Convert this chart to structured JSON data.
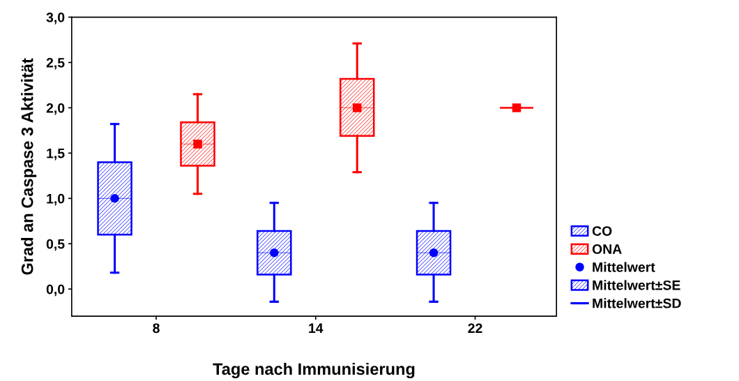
{
  "chart_data": {
    "type": "box",
    "xlabel": "Tage nach Immunisierung",
    "ylabel": "Grad an Caspase 3 Aktivität",
    "categories": [
      "8",
      "14",
      "22"
    ],
    "series": [
      {
        "name": "CO",
        "color": "#0000ff",
        "marker": "circle",
        "boxes": [
          {
            "low": 0.18,
            "q1": 0.6,
            "median": 1.0,
            "q3": 1.4,
            "high": 1.82,
            "mean": 1.0
          },
          {
            "low": -0.14,
            "q1": 0.16,
            "median": 0.4,
            "q3": 0.64,
            "high": 0.95,
            "mean": 0.4
          },
          {
            "low": -0.14,
            "q1": 0.16,
            "median": 0.4,
            "q3": 0.64,
            "high": 0.95,
            "mean": 0.4
          }
        ]
      },
      {
        "name": "ONA",
        "color": "#ff0000",
        "marker": "square",
        "boxes": [
          {
            "low": 1.05,
            "q1": 1.36,
            "median": 1.6,
            "q3": 1.84,
            "high": 2.15,
            "mean": 1.6
          },
          {
            "low": 1.29,
            "q1": 1.69,
            "median": 2.0,
            "q3": 2.32,
            "high": 2.71,
            "mean": 2.0
          },
          {
            "low": 2.0,
            "q1": 2.0,
            "median": 2.0,
            "q3": 2.0,
            "high": 2.0,
            "mean": 2.0
          }
        ]
      }
    ],
    "ylim": [
      -0.3,
      3.0
    ],
    "yticks": [
      {
        "value": 0,
        "label": "0,0"
      },
      {
        "value": 0.5,
        "label": "0,5"
      },
      {
        "value": 1,
        "label": "1,0"
      },
      {
        "value": 1.5,
        "label": "1,5"
      },
      {
        "value": 2,
        "label": "2,0"
      },
      {
        "value": 2.5,
        "label": "2,5"
      },
      {
        "value": 3,
        "label": "3,0"
      }
    ],
    "grid": false,
    "legend": "right",
    "annotations": [
      "Mittelwert",
      "Mittelwert±SE",
      "Mittelwert±SD"
    ]
  }
}
